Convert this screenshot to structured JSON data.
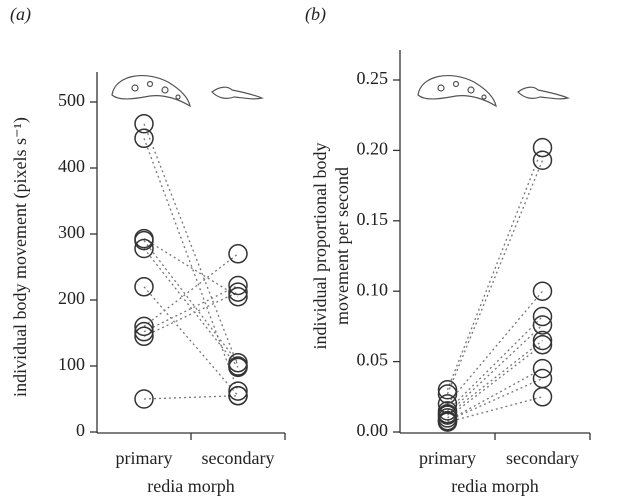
{
  "chart_data": [
    {
      "type": "paired-dot",
      "panel_label": "(a)",
      "ylabel": [
        "individual body movement (pixels s⁻¹)"
      ],
      "xlabel": "redia morph",
      "categories": [
        "primary",
        "secondary"
      ],
      "values": [
        [
          467,
          445,
          293,
          290,
          278,
          220,
          160,
          152,
          145,
          50
        ],
        [
          100,
          62,
          205,
          105,
          98,
          55,
          270,
          222,
          212,
          55
        ]
      ],
      "color": "#333333",
      "ylim": [
        0,
        500
      ],
      "yticks": [
        0,
        100,
        200,
        300,
        400,
        500
      ]
    },
    {
      "type": "paired-dot",
      "panel_label": "(b)",
      "ylabel": [
        "individual proportional body",
        "movement per second"
      ],
      "xlabel": "redia morph",
      "categories": [
        "primary",
        "secondary"
      ],
      "values": [
        [
          0.03,
          0.027,
          0.02,
          0.015,
          0.013,
          0.012,
          0.01,
          0.008,
          0.008,
          0.007
        ],
        [
          0.202,
          0.193,
          0.1,
          0.082,
          0.076,
          0.065,
          0.062,
          0.045,
          0.038,
          0.025
        ]
      ],
      "color": "#333333",
      "ylim": [
        0,
        0.25
      ],
      "yticks": [
        {
          "value": 0,
          "label": "0.00"
        },
        0.05,
        {
          "value": 0.1,
          "label": "0.10"
        },
        0.15,
        {
          "value": 0.2,
          "label": "0.20"
        },
        0.25
      ]
    }
  ]
}
